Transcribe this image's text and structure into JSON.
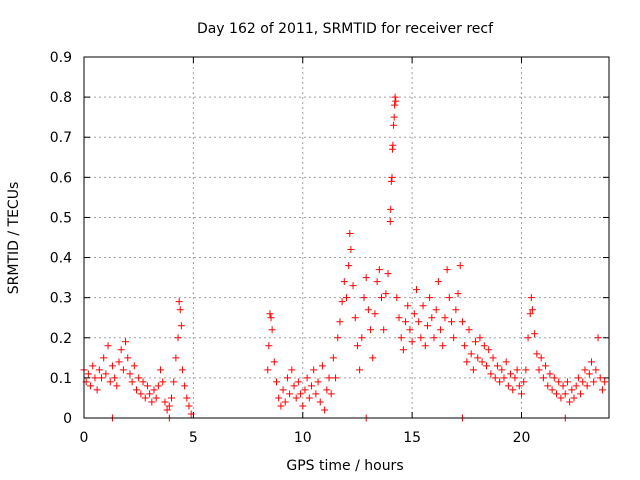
{
  "chart_data": {
    "type": "scatter",
    "title": "Day 162 of 2011, SRMTID for receiver recf",
    "xlabel": "GPS time / hours",
    "ylabel": "SRMTID / TECUs",
    "xlim": [
      0,
      24
    ],
    "ylim": [
      0,
      0.9
    ],
    "xticks": [
      "0",
      "5",
      "10",
      "15",
      "20"
    ],
    "xtick_values": [
      0,
      5,
      10,
      15,
      20
    ],
    "yticks": [
      "0",
      "0.1",
      "0.2",
      "0.3",
      "0.4",
      "0.5",
      "0.6",
      "0.7",
      "0.8",
      "0.9"
    ],
    "ytick_values": [
      0,
      0.1,
      0.2,
      0.3,
      0.4,
      0.5,
      0.6,
      0.7,
      0.8,
      0.9
    ],
    "grid": true,
    "marker": "+",
    "series": [
      {
        "name": "recf",
        "color": "#ff0000",
        "points": [
          [
            0.0,
            0.12
          ],
          [
            0.1,
            0.09
          ],
          [
            0.2,
            0.11
          ],
          [
            0.3,
            0.08
          ],
          [
            0.4,
            0.13
          ],
          [
            0.5,
            0.1
          ],
          [
            0.6,
            0.07
          ],
          [
            0.7,
            0.12
          ],
          [
            0.8,
            0.1
          ],
          [
            0.9,
            0.15
          ],
          [
            1.0,
            0.11
          ],
          [
            1.1,
            0.18
          ],
          [
            1.2,
            0.09
          ],
          [
            1.3,
            0.13
          ],
          [
            1.4,
            0.1
          ],
          [
            1.5,
            0.08
          ],
          [
            1.6,
            0.14
          ],
          [
            1.7,
            0.17
          ],
          [
            1.8,
            0.12
          ],
          [
            1.9,
            0.19
          ],
          [
            2.0,
            0.15
          ],
          [
            2.1,
            0.11
          ],
          [
            2.2,
            0.09
          ],
          [
            2.3,
            0.13
          ],
          [
            2.4,
            0.07
          ],
          [
            2.5,
            0.1
          ],
          [
            2.6,
            0.06
          ],
          [
            2.7,
            0.09
          ],
          [
            2.8,
            0.05
          ],
          [
            2.9,
            0.08
          ],
          [
            3.0,
            0.06
          ],
          [
            3.1,
            0.04
          ],
          [
            3.2,
            0.07
          ],
          [
            3.3,
            0.05
          ],
          [
            3.4,
            0.08
          ],
          [
            3.5,
            0.12
          ],
          [
            3.6,
            0.09
          ],
          [
            3.7,
            0.04
          ],
          [
            3.8,
            0.02
          ],
          [
            3.9,
            0.03
          ],
          [
            4.0,
            0.05
          ],
          [
            4.1,
            0.09
          ],
          [
            4.2,
            0.15
          ],
          [
            4.3,
            0.2
          ],
          [
            4.35,
            0.29
          ],
          [
            4.4,
            0.27
          ],
          [
            4.45,
            0.23
          ],
          [
            4.5,
            0.12
          ],
          [
            4.6,
            0.08
          ],
          [
            4.7,
            0.05
          ],
          [
            4.8,
            0.03
          ],
          [
            4.9,
            0.01
          ],
          [
            1.3,
            0.0
          ],
          [
            3.9,
            0.0
          ],
          [
            8.4,
            0.12
          ],
          [
            8.45,
            0.18
          ],
          [
            8.5,
            0.26
          ],
          [
            8.55,
            0.25
          ],
          [
            8.6,
            0.22
          ],
          [
            8.7,
            0.14
          ],
          [
            8.8,
            0.09
          ],
          [
            8.9,
            0.05
          ],
          [
            9.0,
            0.03
          ],
          [
            9.1,
            0.07
          ],
          [
            9.2,
            0.04
          ],
          [
            9.3,
            0.1
          ],
          [
            9.4,
            0.06
          ],
          [
            9.5,
            0.12
          ],
          [
            9.6,
            0.08
          ],
          [
            9.7,
            0.05
          ],
          [
            9.8,
            0.09
          ],
          [
            9.9,
            0.06
          ],
          [
            10.0,
            0.03
          ],
          [
            10.1,
            0.07
          ],
          [
            10.2,
            0.1
          ],
          [
            10.3,
            0.05
          ],
          [
            10.4,
            0.08
          ],
          [
            10.5,
            0.12
          ],
          [
            10.6,
            0.06
          ],
          [
            10.7,
            0.09
          ],
          [
            10.8,
            0.04
          ],
          [
            10.9,
            0.13
          ],
          [
            11.0,
            0.02
          ],
          [
            11.1,
            0.07
          ],
          [
            11.2,
            0.1
          ],
          [
            11.3,
            0.06
          ],
          [
            11.4,
            0.15
          ],
          [
            11.5,
            0.1
          ],
          [
            11.6,
            0.2
          ],
          [
            11.7,
            0.24
          ],
          [
            11.8,
            0.29
          ],
          [
            11.9,
            0.34
          ],
          [
            12.0,
            0.3
          ],
          [
            12.1,
            0.38
          ],
          [
            12.15,
            0.46
          ],
          [
            12.2,
            0.42
          ],
          [
            12.3,
            0.33
          ],
          [
            12.4,
            0.25
          ],
          [
            12.5,
            0.18
          ],
          [
            12.6,
            0.12
          ],
          [
            12.7,
            0.2
          ],
          [
            12.8,
            0.3
          ],
          [
            12.9,
            0.35
          ],
          [
            13.0,
            0.27
          ],
          [
            13.1,
            0.22
          ],
          [
            13.2,
            0.15
          ],
          [
            13.3,
            0.26
          ],
          [
            13.4,
            0.34
          ],
          [
            13.5,
            0.37
          ],
          [
            13.6,
            0.3
          ],
          [
            13.7,
            0.22
          ],
          [
            13.8,
            0.31
          ],
          [
            13.9,
            0.36
          ],
          [
            14.0,
            0.49
          ],
          [
            14.02,
            0.52
          ],
          [
            14.05,
            0.59
          ],
          [
            14.08,
            0.6
          ],
          [
            14.1,
            0.67
          ],
          [
            14.12,
            0.68
          ],
          [
            14.15,
            0.73
          ],
          [
            14.18,
            0.75
          ],
          [
            14.2,
            0.78
          ],
          [
            14.22,
            0.8
          ],
          [
            14.25,
            0.79
          ],
          [
            14.3,
            0.3
          ],
          [
            14.4,
            0.25
          ],
          [
            14.5,
            0.2
          ],
          [
            14.6,
            0.17
          ],
          [
            14.7,
            0.24
          ],
          [
            14.8,
            0.28
          ],
          [
            14.9,
            0.22
          ],
          [
            15.0,
            0.19
          ],
          [
            15.1,
            0.26
          ],
          [
            15.2,
            0.32
          ],
          [
            15.3,
            0.24
          ],
          [
            15.4,
            0.2
          ],
          [
            15.5,
            0.28
          ],
          [
            15.6,
            0.18
          ],
          [
            15.7,
            0.23
          ],
          [
            15.8,
            0.3
          ],
          [
            15.9,
            0.25
          ],
          [
            16.0,
            0.2
          ],
          [
            16.1,
            0.27
          ],
          [
            16.2,
            0.34
          ],
          [
            16.3,
            0.22
          ],
          [
            16.4,
            0.18
          ],
          [
            16.5,
            0.25
          ],
          [
            16.6,
            0.37
          ],
          [
            16.7,
            0.3
          ],
          [
            16.8,
            0.24
          ],
          [
            16.9,
            0.2
          ],
          [
            17.0,
            0.27
          ],
          [
            17.1,
            0.31
          ],
          [
            17.2,
            0.38
          ],
          [
            17.3,
            0.24
          ],
          [
            17.4,
            0.18
          ],
          [
            17.5,
            0.14
          ],
          [
            17.6,
            0.22
          ],
          [
            17.7,
            0.16
          ],
          [
            17.8,
            0.12
          ],
          [
            17.9,
            0.19
          ],
          [
            18.0,
            0.15
          ],
          [
            18.1,
            0.2
          ],
          [
            18.2,
            0.14
          ],
          [
            18.3,
            0.18
          ],
          [
            18.4,
            0.13
          ],
          [
            18.5,
            0.17
          ],
          [
            18.6,
            0.11
          ],
          [
            18.7,
            0.15
          ],
          [
            18.8,
            0.1
          ],
          [
            18.9,
            0.13
          ],
          [
            19.0,
            0.09
          ],
          [
            19.1,
            0.12
          ],
          [
            19.2,
            0.1
          ],
          [
            19.3,
            0.14
          ],
          [
            19.4,
            0.08
          ],
          [
            19.5,
            0.11
          ],
          [
            19.6,
            0.07
          ],
          [
            19.7,
            0.1
          ],
          [
            19.8,
            0.12
          ],
          [
            19.9,
            0.08
          ],
          [
            20.0,
            0.06
          ],
          [
            20.1,
            0.09
          ],
          [
            20.2,
            0.12
          ],
          [
            20.3,
            0.2
          ],
          [
            20.4,
            0.26
          ],
          [
            20.45,
            0.3
          ],
          [
            20.5,
            0.27
          ],
          [
            20.6,
            0.21
          ],
          [
            20.7,
            0.16
          ],
          [
            20.8,
            0.12
          ],
          [
            20.9,
            0.15
          ],
          [
            21.0,
            0.1
          ],
          [
            21.1,
            0.13
          ],
          [
            21.2,
            0.08
          ],
          [
            21.3,
            0.11
          ],
          [
            21.4,
            0.07
          ],
          [
            21.5,
            0.1
          ],
          [
            21.6,
            0.06
          ],
          [
            21.7,
            0.09
          ],
          [
            21.8,
            0.05
          ],
          [
            21.9,
            0.08
          ],
          [
            22.0,
            0.06
          ],
          [
            22.1,
            0.09
          ],
          [
            22.2,
            0.04
          ],
          [
            22.3,
            0.07
          ],
          [
            22.4,
            0.05
          ],
          [
            22.5,
            0.08
          ],
          [
            22.6,
            0.1
          ],
          [
            22.7,
            0.06
          ],
          [
            22.8,
            0.09
          ],
          [
            22.9,
            0.12
          ],
          [
            23.0,
            0.08
          ],
          [
            23.1,
            0.11
          ],
          [
            23.2,
            0.14
          ],
          [
            23.3,
            0.09
          ],
          [
            23.4,
            0.12
          ],
          [
            23.5,
            0.2
          ],
          [
            23.6,
            0.1
          ],
          [
            23.7,
            0.07
          ],
          [
            23.8,
            0.09
          ],
          [
            12.9,
            0.0
          ],
          [
            17.3,
            0.0
          ],
          [
            22.0,
            0.0
          ]
        ]
      }
    ]
  }
}
